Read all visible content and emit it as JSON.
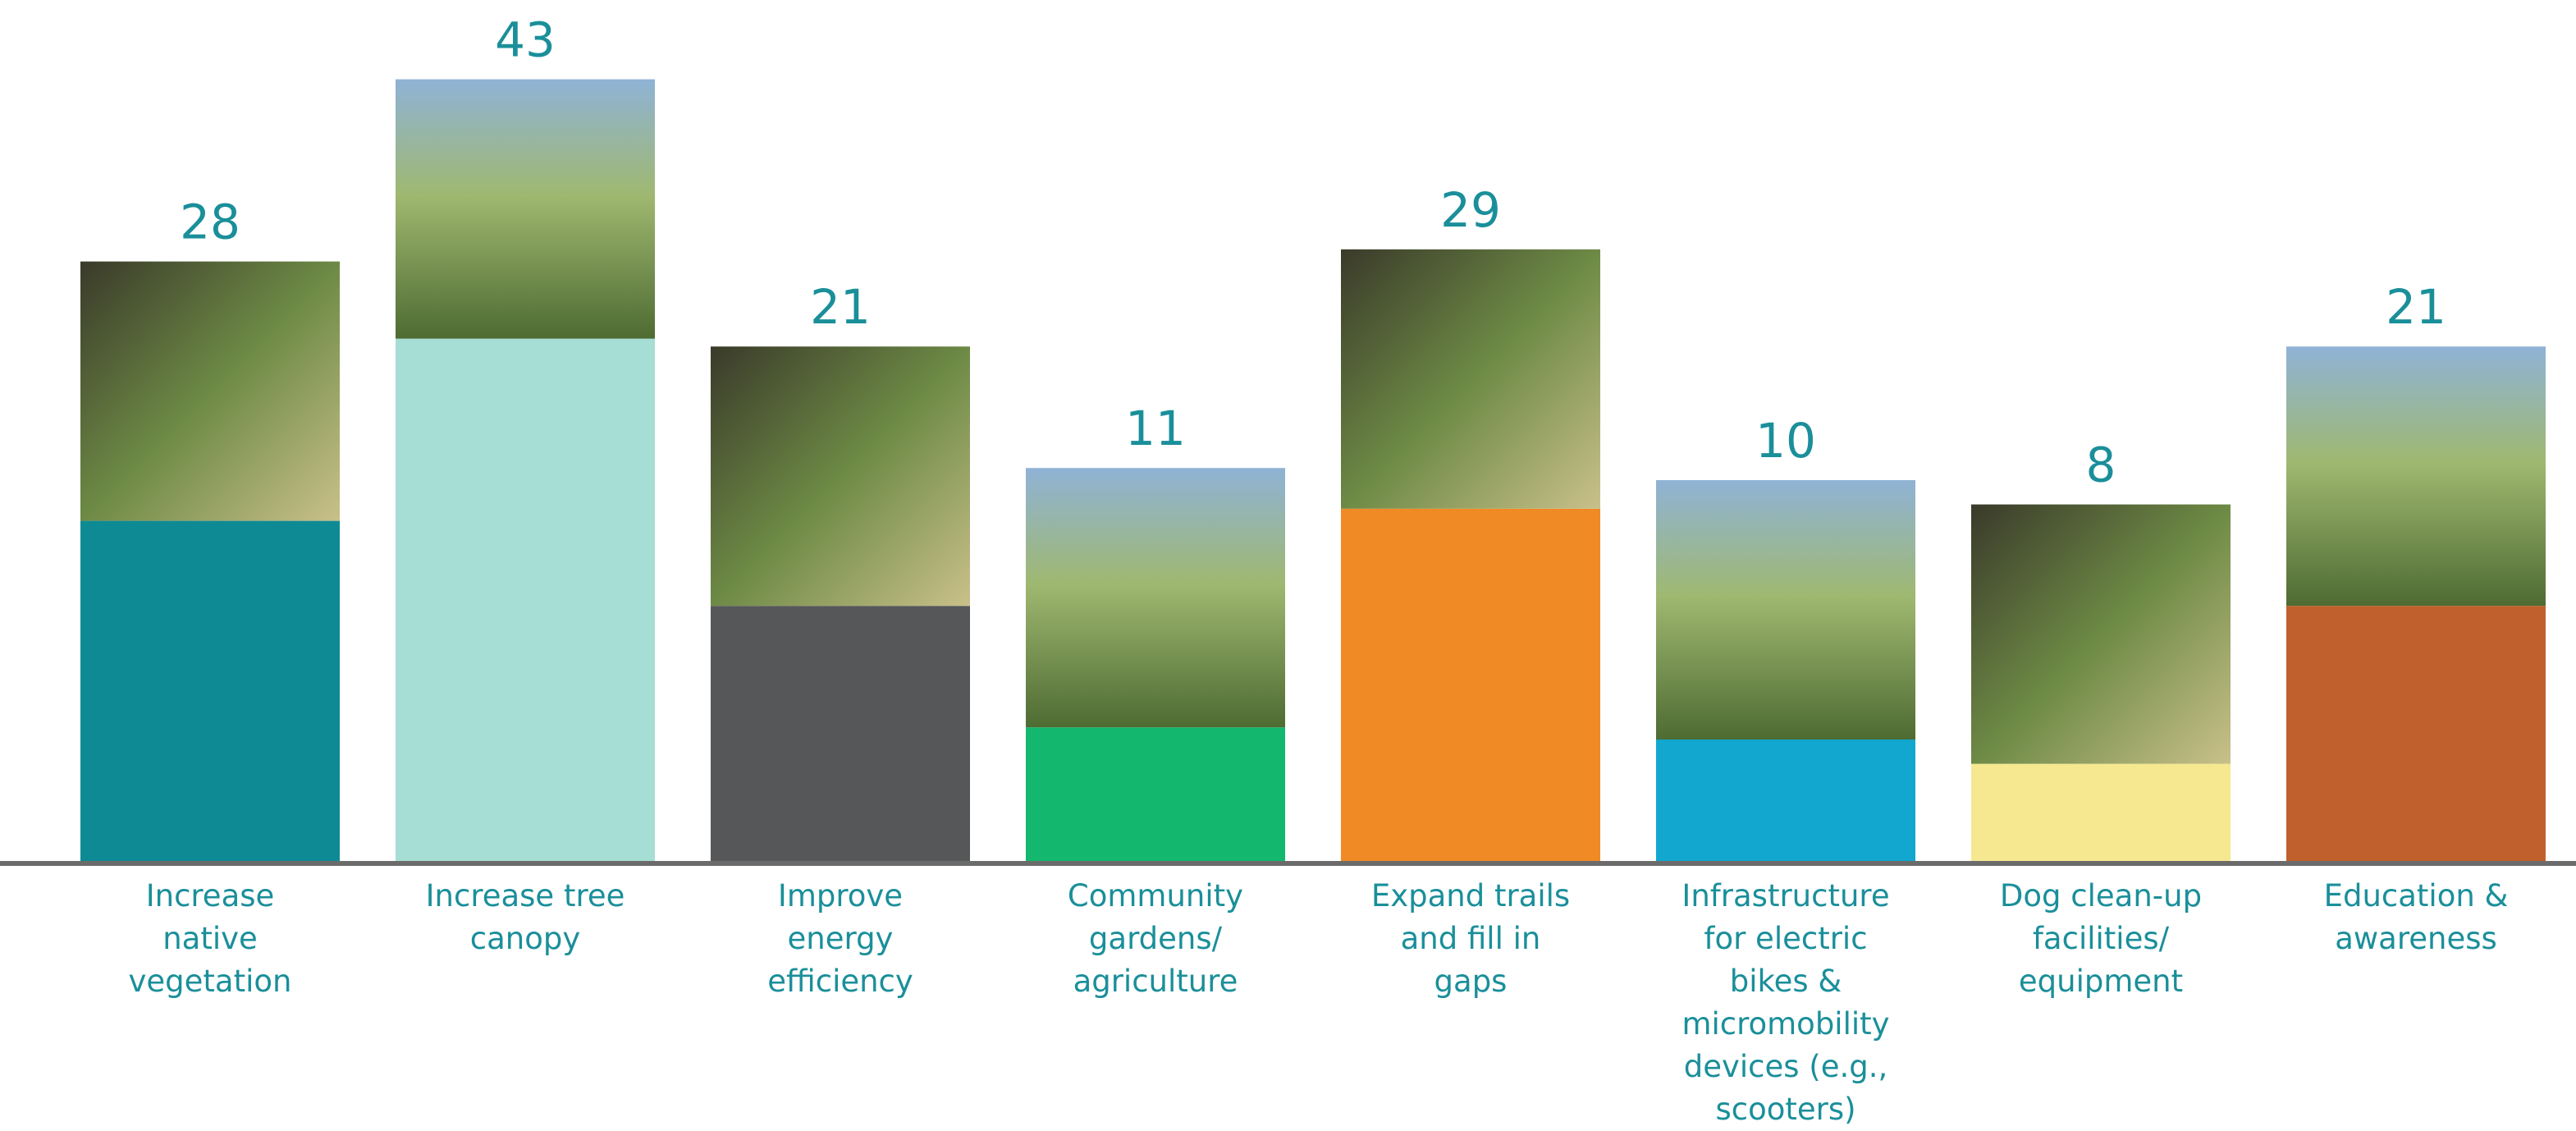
{
  "chart_data": {
    "type": "bar",
    "categories": [
      "Increase native vegetation",
      "Increase tree canopy",
      "Improve energy efficiency",
      "Community gardens/ agriculture",
      "Expand trails and fill in gaps",
      "Infrastructure for electric bikes & micromobility devices (e.g., scooters)",
      "Dog clean-up facilities/ equipment",
      "Education & awareness"
    ],
    "values": [
      28,
      43,
      21,
      11,
      29,
      10,
      8,
      21
    ],
    "colors": [
      "#0e8a94",
      "#a6ddd4",
      "#555759",
      "#13b86e",
      "#ef8a24",
      "#11a7cf",
      "#f5e890",
      "#c0602c"
    ]
  }
}
